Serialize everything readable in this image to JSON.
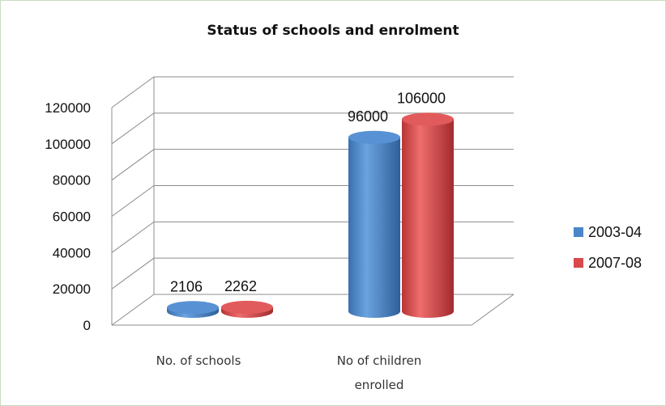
{
  "chart_data": {
    "type": "bar",
    "title": "Status of schools and enrolment",
    "categories": [
      "No. of schools",
      "No of children enrolled"
    ],
    "category_lines": [
      [
        "No. of schools"
      ],
      [
        "No of children",
        "enrolled"
      ]
    ],
    "series": [
      {
        "name": "2003-04",
        "values": [
          2106,
          96000
        ],
        "color": "#4a86c8"
      },
      {
        "name": "2007-08",
        "values": [
          2262,
          106000
        ],
        "color": "#d9484a"
      }
    ],
    "ylim": [
      0,
      120000
    ],
    "yticks": [
      0,
      20000,
      40000,
      60000,
      80000,
      100000,
      120000
    ],
    "grid": true,
    "legend_position": "right",
    "style": "3d-cylinder"
  }
}
